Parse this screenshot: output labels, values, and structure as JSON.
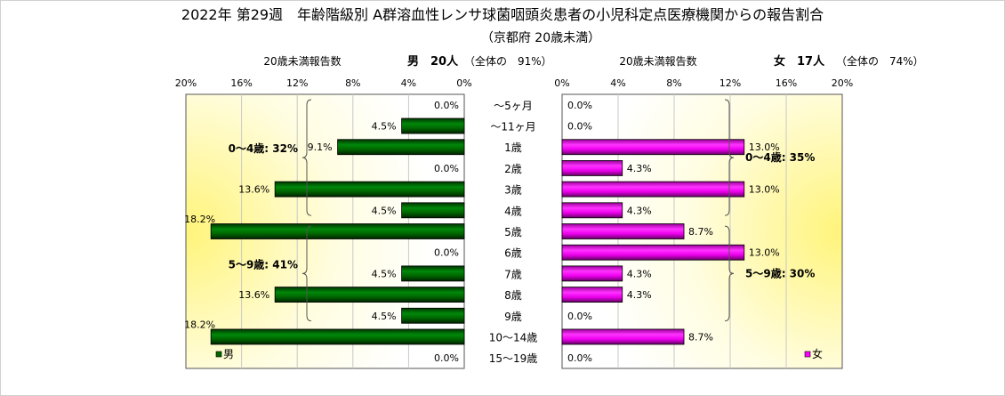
{
  "chart_data": {
    "type": "bar",
    "title": "2022年 第29週　年齢階級別 A群溶血性レンサ球菌咽頭炎患者の小児科定点医療機関からの報告割合",
    "subtitle": "（京都府 20歳未満）",
    "categories": [
      "～5ヶ月",
      "～11ヶ月",
      "1歳",
      "2歳",
      "3歳",
      "4歳",
      "5歳",
      "6歳",
      "7歳",
      "8歳",
      "9歳",
      "10～14歳",
      "15～19歳"
    ],
    "xlim": [
      0,
      20
    ],
    "ticks": [
      "0%",
      "4%",
      "8%",
      "12%",
      "16%",
      "20%"
    ],
    "grid": true,
    "series": [
      {
        "name": "男",
        "side": "left",
        "color": "#006600",
        "header_label": "20歳未満報告数",
        "header_count": "男　20人",
        "header_share": "（全体の　91%）",
        "values": [
          0.0,
          4.5,
          9.1,
          0.0,
          13.6,
          4.5,
          18.2,
          0.0,
          4.5,
          13.6,
          4.5,
          18.2,
          0.0
        ],
        "labels": [
          "0.0%",
          "4.5%",
          "9.1%",
          "0.0%",
          "13.6%",
          "4.5%",
          "18.2%",
          "0.0%",
          "4.5%",
          "13.6%",
          "4.5%",
          "18.2%",
          "0.0%"
        ],
        "annotations": [
          {
            "text": "0～4歳: 32%",
            "from": 0,
            "to": 5
          },
          {
            "text": "5～9歳: 41%",
            "from": 6,
            "to": 10
          }
        ],
        "legend": "男"
      },
      {
        "name": "女",
        "side": "right",
        "color": "#ff00ff",
        "header_label": "20歳未満報告数",
        "header_count": "女　17人",
        "header_share": "（全体の　74%）",
        "values": [
          0.0,
          0.0,
          13.0,
          4.3,
          13.0,
          4.3,
          8.7,
          13.0,
          4.3,
          4.3,
          0.0,
          8.7,
          0.0
        ],
        "labels": [
          "0.0%",
          "0.0%",
          "13.0%",
          "4.3%",
          "13.0%",
          "4.3%",
          "8.7%",
          "13.0%",
          "4.3%",
          "4.3%",
          "0.0%",
          "8.7%",
          "0.0%"
        ],
        "annotations": [
          {
            "text": "0～4歳: 35%",
            "from": 0,
            "to": 5
          },
          {
            "text": "5～9歳: 30%",
            "from": 6,
            "to": 10
          }
        ],
        "legend": "女"
      }
    ]
  }
}
